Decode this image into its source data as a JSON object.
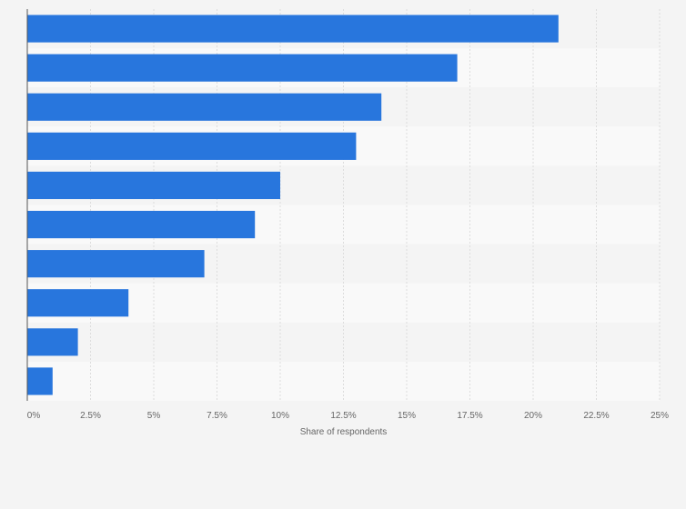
{
  "chart_data": {
    "type": "bar",
    "orientation": "horizontal",
    "title": "",
    "xlabel": "Share of respondents",
    "ylabel": "",
    "categories": [
      "",
      "",
      "",
      "",
      "",
      "",
      "",
      "",
      "",
      ""
    ],
    "values": [
      21,
      17,
      14,
      13,
      10,
      9,
      7,
      4,
      2,
      1
    ],
    "xlim": [
      0,
      25
    ],
    "x_ticks": [
      "0%",
      "2.5%",
      "5%",
      "7.5%",
      "10%",
      "12.5%",
      "15%",
      "17.5%",
      "20%",
      "22.5%",
      "25%"
    ],
    "grid": true,
    "bar_color": "#2876dd",
    "band_colors": [
      "#f4f4f4",
      "#f9f9f9"
    ]
  }
}
